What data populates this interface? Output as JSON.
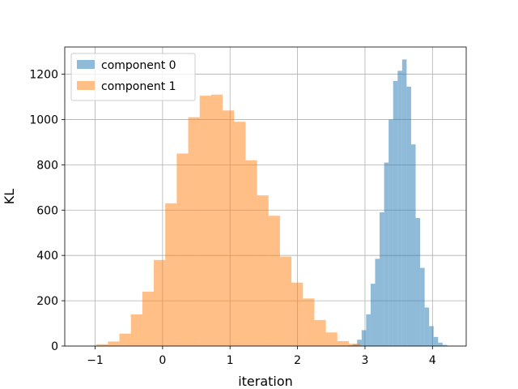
{
  "chart_data": {
    "type": "histogram",
    "xlabel": "iteration",
    "ylabel": "KL",
    "xlim": [
      -1.45,
      4.5
    ],
    "ylim": [
      0,
      1320
    ],
    "xticks": [
      -1,
      0,
      1,
      2,
      3,
      4
    ],
    "xtick_labels": [
      "−1",
      "0",
      "1",
      "2",
      "3",
      "4"
    ],
    "yticks": [
      0,
      200,
      400,
      600,
      800,
      1000,
      1200
    ],
    "ytick_labels": [
      "0",
      "200",
      "400",
      "600",
      "800",
      "1000",
      "1200"
    ],
    "grid": true,
    "legend_position": "top-left",
    "series": [
      {
        "name": "component 0",
        "color": "#1f77b4",
        "opacity": 0.5,
        "bin_start": 2.75,
        "bin_width": 0.0667,
        "counts": [
          3,
          8,
          28,
          70,
          140,
          275,
          385,
          590,
          810,
          1000,
          1170,
          1215,
          1265,
          1145,
          890,
          565,
          345,
          170,
          88,
          40,
          15,
          5
        ]
      },
      {
        "name": "component 1",
        "color": "#ff7f0e",
        "opacity": 0.5,
        "bin_start": -0.98,
        "bin_width": 0.17,
        "counts": [
          8,
          20,
          55,
          140,
          240,
          380,
          630,
          850,
          1010,
          1105,
          1110,
          1040,
          990,
          820,
          665,
          575,
          395,
          280,
          210,
          115,
          60,
          22,
          10
        ]
      }
    ]
  }
}
